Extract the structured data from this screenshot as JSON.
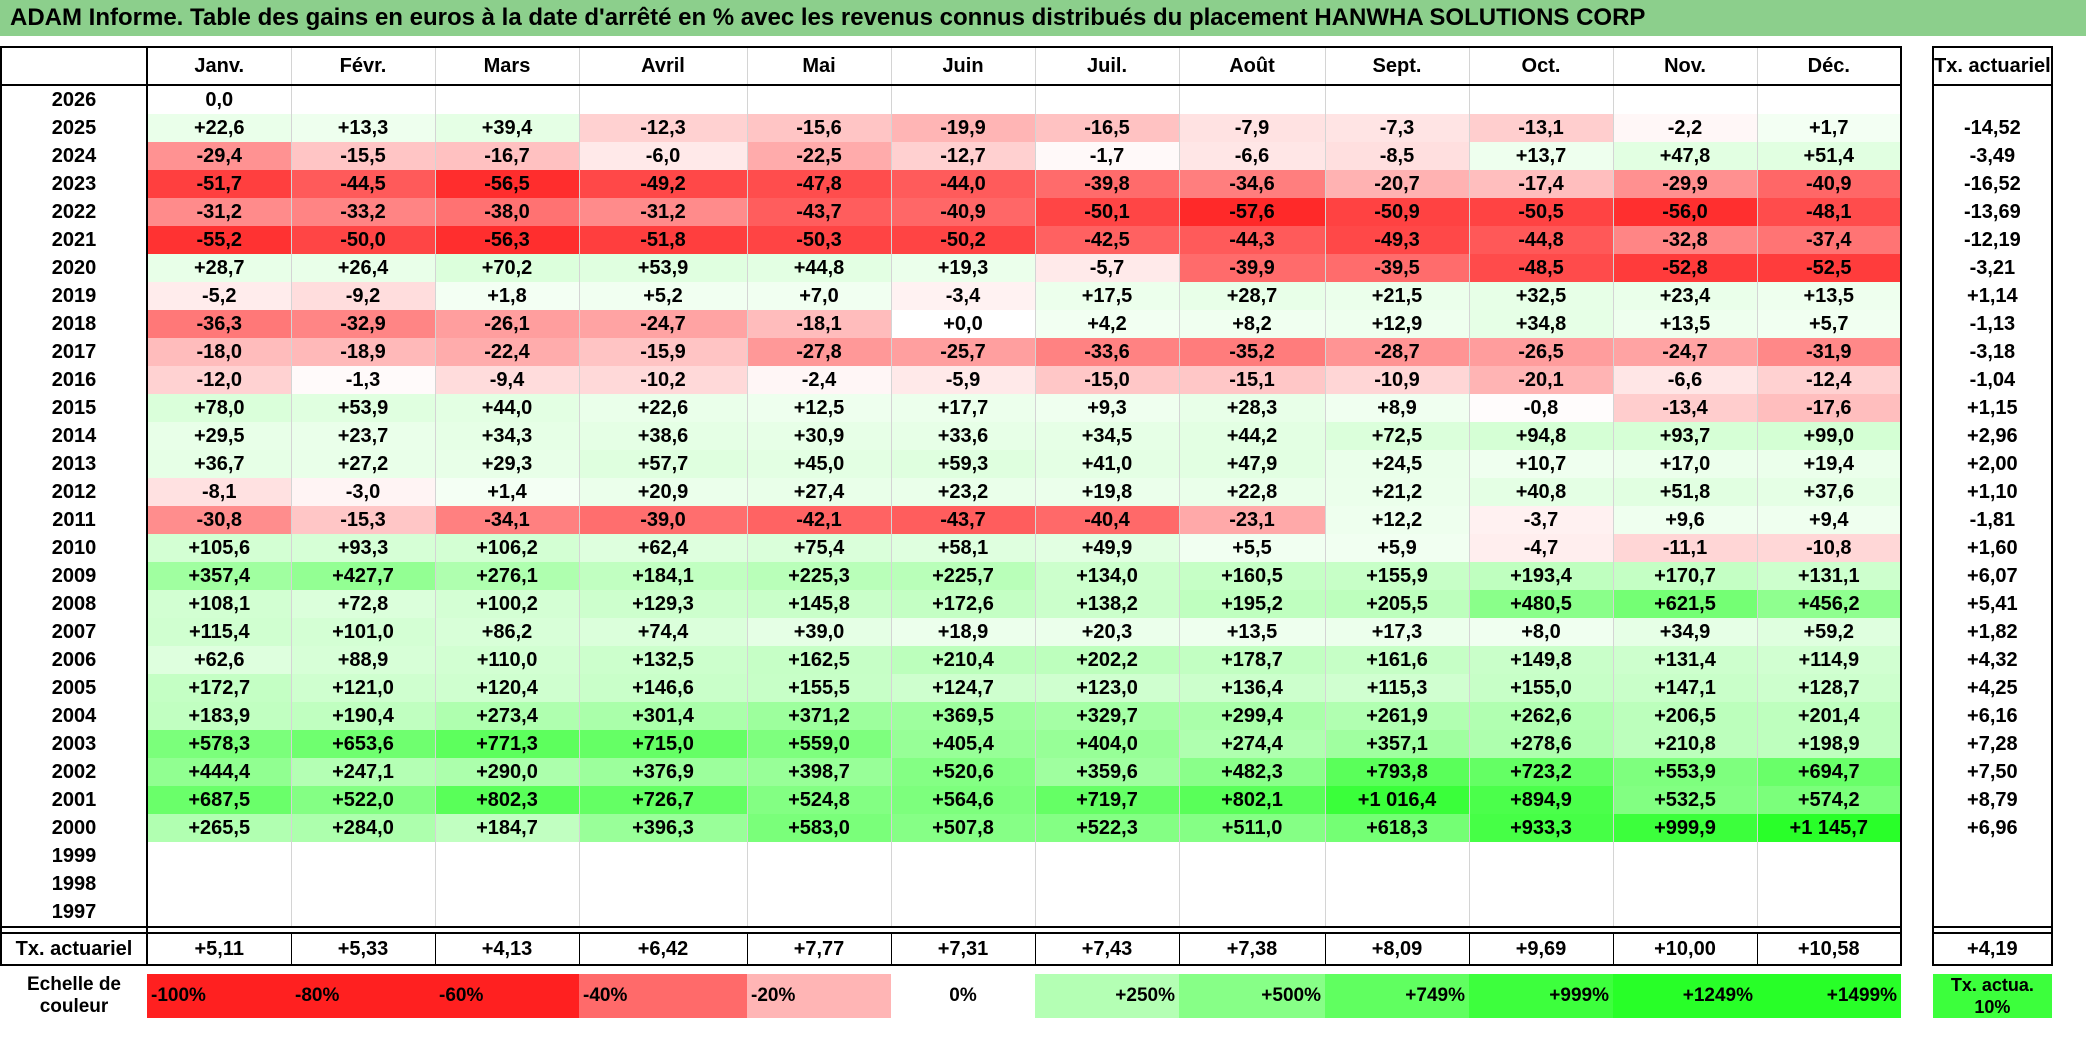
{
  "title": "ADAM Informe. Table des gains en euros à la date d'arrêté en % avec les revenus connus distribués du placement HANWHA SOLUTIONS CORP",
  "chart_data": {
    "type": "table",
    "columns": [
      "Janv.",
      "Févr.",
      "Mars",
      "Avril",
      "Mai",
      "Juin",
      "Juil.",
      "Août",
      "Sept.",
      "Oct.",
      "Nov.",
      "Déc."
    ],
    "actuarial_header": "Tx. actuariel",
    "rows": [
      {
        "year": "2026",
        "values": [
          "0,0",
          "",
          "",
          "",
          "",
          "",
          "",
          "",
          "",
          "",
          "",
          ""
        ],
        "rate": ""
      },
      {
        "year": "2025",
        "values": [
          "+22,6",
          "+13,3",
          "+39,4",
          "-12,3",
          "-15,6",
          "-19,9",
          "-16,5",
          "-7,9",
          "-7,3",
          "-13,1",
          "-2,2",
          "+1,7"
        ],
        "rate": "-14,52"
      },
      {
        "year": "2024",
        "values": [
          "-29,4",
          "-15,5",
          "-16,7",
          "-6,0",
          "-22,5",
          "-12,7",
          "-1,7",
          "-6,6",
          "-8,5",
          "+13,7",
          "+47,8",
          "+51,4"
        ],
        "rate": "-3,49"
      },
      {
        "year": "2023",
        "values": [
          "-51,7",
          "-44,5",
          "-56,5",
          "-49,2",
          "-47,8",
          "-44,0",
          "-39,8",
          "-34,6",
          "-20,7",
          "-17,4",
          "-29,9",
          "-40,9"
        ],
        "rate": "-16,52"
      },
      {
        "year": "2022",
        "values": [
          "-31,2",
          "-33,2",
          "-38,0",
          "-31,2",
          "-43,7",
          "-40,9",
          "-50,1",
          "-57,6",
          "-50,9",
          "-50,5",
          "-56,0",
          "-48,1"
        ],
        "rate": "-13,69"
      },
      {
        "year": "2021",
        "values": [
          "-55,2",
          "-50,0",
          "-56,3",
          "-51,8",
          "-50,3",
          "-50,2",
          "-42,5",
          "-44,3",
          "-49,3",
          "-44,8",
          "-32,8",
          "-37,4"
        ],
        "rate": "-12,19"
      },
      {
        "year": "2020",
        "values": [
          "+28,7",
          "+26,4",
          "+70,2",
          "+53,9",
          "+44,8",
          "+19,3",
          "-5,7",
          "-39,9",
          "-39,5",
          "-48,5",
          "-52,8",
          "-52,5"
        ],
        "rate": "-3,21"
      },
      {
        "year": "2019",
        "values": [
          "-5,2",
          "-9,2",
          "+1,8",
          "+5,2",
          "+7,0",
          "-3,4",
          "+17,5",
          "+28,7",
          "+21,5",
          "+32,5",
          "+23,4",
          "+13,5"
        ],
        "rate": "+1,14"
      },
      {
        "year": "2018",
        "values": [
          "-36,3",
          "-32,9",
          "-26,1",
          "-24,7",
          "-18,1",
          "+0,0",
          "+4,2",
          "+8,2",
          "+12,9",
          "+34,8",
          "+13,5",
          "+5,7"
        ],
        "rate": "-1,13"
      },
      {
        "year": "2017",
        "values": [
          "-18,0",
          "-18,9",
          "-22,4",
          "-15,9",
          "-27,8",
          "-25,7",
          "-33,6",
          "-35,2",
          "-28,7",
          "-26,5",
          "-24,7",
          "-31,9"
        ],
        "rate": "-3,18"
      },
      {
        "year": "2016",
        "values": [
          "-12,0",
          "-1,3",
          "-9,4",
          "-10,2",
          "-2,4",
          "-5,9",
          "-15,0",
          "-15,1",
          "-10,9",
          "-20,1",
          "-6,6",
          "-12,4"
        ],
        "rate": "-1,04"
      },
      {
        "year": "2015",
        "values": [
          "+78,0",
          "+53,9",
          "+44,0",
          "+22,6",
          "+12,5",
          "+17,7",
          "+9,3",
          "+28,3",
          "+8,9",
          "-0,8",
          "-13,4",
          "-17,6"
        ],
        "rate": "+1,15"
      },
      {
        "year": "2014",
        "values": [
          "+29,5",
          "+23,7",
          "+34,3",
          "+38,6",
          "+30,9",
          "+33,6",
          "+34,5",
          "+44,2",
          "+72,5",
          "+94,8",
          "+93,7",
          "+99,0"
        ],
        "rate": "+2,96"
      },
      {
        "year": "2013",
        "values": [
          "+36,7",
          "+27,2",
          "+29,3",
          "+57,7",
          "+45,0",
          "+59,3",
          "+41,0",
          "+47,9",
          "+24,5",
          "+10,7",
          "+17,0",
          "+19,4"
        ],
        "rate": "+2,00"
      },
      {
        "year": "2012",
        "values": [
          "-8,1",
          "-3,0",
          "+1,4",
          "+20,9",
          "+27,4",
          "+23,2",
          "+19,8",
          "+22,8",
          "+21,2",
          "+40,8",
          "+51,8",
          "+37,6"
        ],
        "rate": "+1,10"
      },
      {
        "year": "2011",
        "values": [
          "-30,8",
          "-15,3",
          "-34,1",
          "-39,0",
          "-42,1",
          "-43,7",
          "-40,4",
          "-23,1",
          "+12,2",
          "-3,7",
          "+9,6",
          "+9,4"
        ],
        "rate": "-1,81"
      },
      {
        "year": "2010",
        "values": [
          "+105,6",
          "+93,3",
          "+106,2",
          "+62,4",
          "+75,4",
          "+58,1",
          "+49,9",
          "+5,5",
          "+5,9",
          "-4,7",
          "-11,1",
          "-10,8"
        ],
        "rate": "+1,60"
      },
      {
        "year": "2009",
        "values": [
          "+357,4",
          "+427,7",
          "+276,1",
          "+184,1",
          "+225,3",
          "+225,7",
          "+134,0",
          "+160,5",
          "+155,9",
          "+193,4",
          "+170,7",
          "+131,1"
        ],
        "rate": "+6,07"
      },
      {
        "year": "2008",
        "values": [
          "+108,1",
          "+72,8",
          "+100,2",
          "+129,3",
          "+145,8",
          "+172,6",
          "+138,2",
          "+195,2",
          "+205,5",
          "+480,5",
          "+621,5",
          "+456,2"
        ],
        "rate": "+5,41"
      },
      {
        "year": "2007",
        "values": [
          "+115,4",
          "+101,0",
          "+86,2",
          "+74,4",
          "+39,0",
          "+18,9",
          "+20,3",
          "+13,5",
          "+17,3",
          "+8,0",
          "+34,9",
          "+59,2"
        ],
        "rate": "+1,82"
      },
      {
        "year": "2006",
        "values": [
          "+62,6",
          "+88,9",
          "+110,0",
          "+132,5",
          "+162,5",
          "+210,4",
          "+202,2",
          "+178,7",
          "+161,6",
          "+149,8",
          "+131,4",
          "+114,9"
        ],
        "rate": "+4,32"
      },
      {
        "year": "2005",
        "values": [
          "+172,7",
          "+121,0",
          "+120,4",
          "+146,6",
          "+155,5",
          "+124,7",
          "+123,0",
          "+136,4",
          "+115,3",
          "+155,0",
          "+147,1",
          "+128,7"
        ],
        "rate": "+4,25"
      },
      {
        "year": "2004",
        "values": [
          "+183,9",
          "+190,4",
          "+273,4",
          "+301,4",
          "+371,2",
          "+369,5",
          "+329,7",
          "+299,4",
          "+261,9",
          "+262,6",
          "+206,5",
          "+201,4"
        ],
        "rate": "+6,16"
      },
      {
        "year": "2003",
        "values": [
          "+578,3",
          "+653,6",
          "+771,3",
          "+715,0",
          "+559,0",
          "+405,4",
          "+404,0",
          "+274,4",
          "+357,1",
          "+278,6",
          "+210,8",
          "+198,9"
        ],
        "rate": "+7,28"
      },
      {
        "year": "2002",
        "values": [
          "+444,4",
          "+247,1",
          "+290,0",
          "+376,9",
          "+398,7",
          "+520,6",
          "+359,6",
          "+482,3",
          "+793,8",
          "+723,2",
          "+553,9",
          "+694,7"
        ],
        "rate": "+7,50"
      },
      {
        "year": "2001",
        "values": [
          "+687,5",
          "+522,0",
          "+802,3",
          "+726,7",
          "+524,8",
          "+564,6",
          "+719,7",
          "+802,1",
          "+1 016,4",
          "+894,9",
          "+532,5",
          "+574,2"
        ],
        "rate": "+8,79"
      },
      {
        "year": "2000",
        "values": [
          "+265,5",
          "+284,0",
          "+184,7",
          "+396,3",
          "+583,0",
          "+507,8",
          "+522,3",
          "+511,0",
          "+618,3",
          "+933,3",
          "+999,9",
          "+1 145,7"
        ],
        "rate": "+6,96"
      },
      {
        "year": "1999",
        "values": [
          "",
          "",
          "",
          "",
          "",
          "",
          "",
          "",
          "",
          "",
          "",
          ""
        ],
        "rate": ""
      },
      {
        "year": "1998",
        "values": [
          "",
          "",
          "",
          "",
          "",
          "",
          "",
          "",
          "",
          "",
          "",
          ""
        ],
        "rate": ""
      },
      {
        "year": "1997",
        "values": [
          "",
          "",
          "",
          "",
          "",
          "",
          "",
          "",
          "",
          "",
          "",
          ""
        ],
        "rate": ""
      }
    ],
    "average": {
      "label": "Tx. actuariel",
      "values": [
        "+5,11",
        "+5,33",
        "+4,13",
        "+6,42",
        "+7,77",
        "+7,31",
        "+7,43",
        "+7,38",
        "+8,09",
        "+9,69",
        "+10,00",
        "+10,58"
      ],
      "rate": "+4,19"
    },
    "legend": {
      "title": "Echelle de couleur",
      "steps": [
        "-100%",
        "-80%",
        "-60%",
        "-40%",
        "-20%",
        "0%",
        "+250%",
        "+500%",
        "+749%",
        "+999%",
        "+1249%",
        "+1499%"
      ],
      "step_values": [
        -100,
        -80,
        -60,
        -40,
        -20,
        0,
        250,
        500,
        749,
        999,
        1249,
        1499
      ],
      "actuarial_swatch": "Tx. actua. 10%"
    },
    "colors": {
      "negative_max": "#ff2020",
      "zero": "#ffffff",
      "positive_max": "#00ff00",
      "title_bg": "#8ccf8c"
    }
  }
}
